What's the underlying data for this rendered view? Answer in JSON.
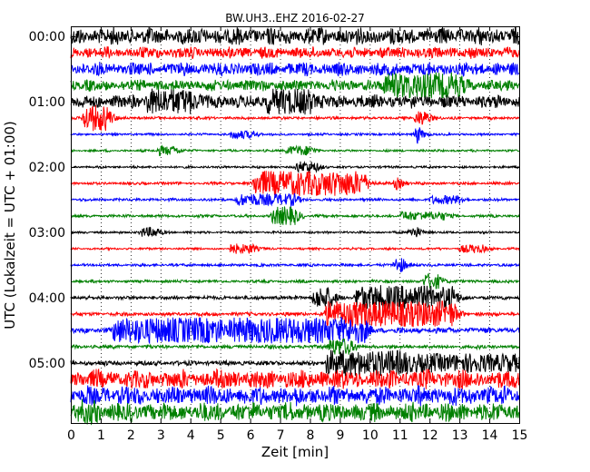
{
  "chart_data": {
    "type": "line",
    "title": "BW.UH3..EHZ 2016-02-27",
    "xlabel": "Zeit  [min]",
    "ylabel": "UTC (Lokalzeit = UTC + 01:00)",
    "xlim": [
      0,
      15
    ],
    "x_ticks": [
      "0",
      "1",
      "2",
      "3",
      "4",
      "5",
      "6",
      "7",
      "8",
      "9",
      "10",
      "11",
      "12",
      "13",
      "14",
      "15"
    ],
    "y_tick_labels": [
      "00:00",
      "01:00",
      "02:00",
      "03:00",
      "04:00",
      "05:00"
    ],
    "y_tick_traces": [
      0,
      4,
      8,
      12,
      16,
      20
    ],
    "grid": "vertical-dotted",
    "trace_interval_min": 15,
    "trace_colors": [
      "#000000",
      "#ff0000",
      "#0000ff",
      "#008000"
    ],
    "traces": [
      {
        "start": "00:00",
        "base": 0.9,
        "events": []
      },
      {
        "start": "00:15",
        "base": 0.6,
        "events": []
      },
      {
        "start": "00:30",
        "base": 0.7,
        "events": []
      },
      {
        "start": "00:45",
        "base": 0.6,
        "events": [
          {
            "t": 10.5,
            "amp": 1.2,
            "dur": 2.5
          }
        ]
      },
      {
        "start": "01:00",
        "base": 0.7,
        "events": [
          {
            "t": 2.5,
            "amp": 1.4,
            "dur": 1.5
          },
          {
            "t": 6.5,
            "amp": 1.2,
            "dur": 1.5
          }
        ]
      },
      {
        "start": "01:15",
        "base": 0.15,
        "events": [
          {
            "t": 0.4,
            "amp": 1.6,
            "dur": 0.8
          },
          {
            "t": 11.5,
            "amp": 0.8,
            "dur": 0.4
          }
        ]
      },
      {
        "start": "01:30",
        "base": 0.12,
        "events": [
          {
            "t": 5.3,
            "amp": 0.4,
            "dur": 0.8
          },
          {
            "t": 11.5,
            "amp": 1.2,
            "dur": 0.1
          }
        ]
      },
      {
        "start": "01:45",
        "base": 0.12,
        "events": [
          {
            "t": 2.9,
            "amp": 0.5,
            "dur": 0.6
          },
          {
            "t": 7.2,
            "amp": 0.5,
            "dur": 0.8
          }
        ]
      },
      {
        "start": "02:00",
        "base": 0.12,
        "events": [
          {
            "t": 7.5,
            "amp": 0.6,
            "dur": 0.7
          }
        ]
      },
      {
        "start": "02:15",
        "base": 0.15,
        "events": [
          {
            "t": 6.1,
            "amp": 1.4,
            "dur": 3.7
          },
          {
            "t": 10.8,
            "amp": 0.7,
            "dur": 0.15
          }
        ]
      },
      {
        "start": "02:30",
        "base": 0.15,
        "events": [
          {
            "t": 5.5,
            "amp": 0.6,
            "dur": 2.0
          },
          {
            "t": 12.0,
            "amp": 0.4,
            "dur": 1.0
          }
        ]
      },
      {
        "start": "02:45",
        "base": 0.15,
        "events": [
          {
            "t": 6.7,
            "amp": 1.0,
            "dur": 0.8
          },
          {
            "t": 11.0,
            "amp": 0.4,
            "dur": 1.5
          }
        ]
      },
      {
        "start": "03:00",
        "base": 0.12,
        "events": [
          {
            "t": 2.3,
            "amp": 0.5,
            "dur": 0.6
          },
          {
            "t": 11.3,
            "amp": 0.6,
            "dur": 0.3
          }
        ]
      },
      {
        "start": "03:15",
        "base": 0.12,
        "events": [
          {
            "t": 5.3,
            "amp": 0.5,
            "dur": 0.8
          },
          {
            "t": 13.0,
            "amp": 0.4,
            "dur": 0.8
          }
        ]
      },
      {
        "start": "03:30",
        "base": 0.15,
        "events": [
          {
            "t": 10.8,
            "amp": 0.8,
            "dur": 0.3
          }
        ]
      },
      {
        "start": "03:45",
        "base": 0.15,
        "events": [
          {
            "t": 11.8,
            "amp": 0.8,
            "dur": 0.5
          }
        ]
      },
      {
        "start": "04:00",
        "base": 0.2,
        "events": [
          {
            "t": 8.1,
            "amp": 1.2,
            "dur": 0.6
          },
          {
            "t": 9.5,
            "amp": 1.3,
            "dur": 3.3
          }
        ]
      },
      {
        "start": "04:15",
        "base": 0.2,
        "events": [
          {
            "t": 8.5,
            "amp": 1.5,
            "dur": 4.3
          }
        ]
      },
      {
        "start": "04:30",
        "base": 0.3,
        "events": [
          {
            "t": 1.4,
            "amp": 1.4,
            "dur": 3.6
          },
          {
            "t": 5.3,
            "amp": 1.5,
            "dur": 4.5
          }
        ]
      },
      {
        "start": "04:45",
        "base": 0.2,
        "events": [
          {
            "t": 8.6,
            "amp": 0.9,
            "dur": 0.7
          }
        ]
      },
      {
        "start": "05:00",
        "base": 0.25,
        "events": [
          {
            "t": 8.5,
            "amp": 1.5,
            "dur": 2.5
          },
          {
            "t": 11.0,
            "amp": 0.9,
            "dur": 4.0
          }
        ]
      },
      {
        "start": "05:15",
        "base": 1.0,
        "events": []
      },
      {
        "start": "05:30",
        "base": 1.0,
        "events": []
      },
      {
        "start": "05:45",
        "base": 1.0,
        "events": [
          {
            "t": 0.3,
            "amp": 1.4,
            "dur": 0.3
          }
        ]
      }
    ]
  }
}
